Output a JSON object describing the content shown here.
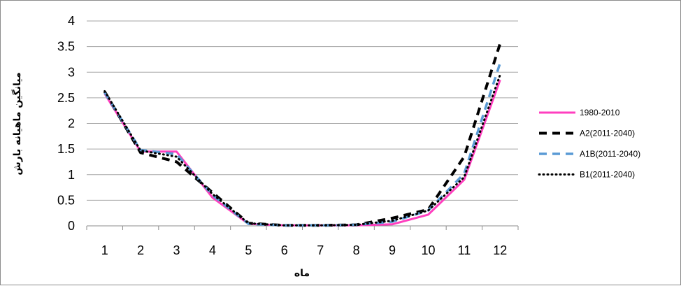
{
  "chart_data": {
    "type": "line",
    "title": "",
    "xlabel": "ماه",
    "ylabel": "میانگین ماهیانه بارش",
    "categories": [
      "1",
      "2",
      "3",
      "4",
      "5",
      "6",
      "7",
      "8",
      "9",
      "10",
      "11",
      "12"
    ],
    "ylim": [
      0,
      4
    ],
    "yticks": [
      "0",
      "0.5",
      "1",
      "1.5",
      "2",
      "2.5",
      "3",
      "3.5",
      "4"
    ],
    "grid": true,
    "legend_position": "right",
    "series": [
      {
        "name": "1980-2010",
        "color": "#ff3fbf",
        "style": "solid",
        "values": [
          2.58,
          1.45,
          1.45,
          0.55,
          0.04,
          0.01,
          0.01,
          0.01,
          0.03,
          0.22,
          0.9,
          2.85
        ]
      },
      {
        "name": "A2(2011-2040)",
        "color": "#000000",
        "style": "dash",
        "values": [
          2.62,
          1.43,
          1.25,
          0.65,
          0.05,
          0.01,
          0.01,
          0.02,
          0.15,
          0.32,
          1.35,
          3.56
        ]
      },
      {
        "name": "A1B(2011-2040)",
        "color": "#5b9bd5",
        "style": "dash",
        "values": [
          2.6,
          1.48,
          1.4,
          0.6,
          0.04,
          0.01,
          0.01,
          0.02,
          0.08,
          0.3,
          1.02,
          3.18
        ]
      },
      {
        "name": "B1(2011-2040)",
        "color": "#000000",
        "style": "dot",
        "values": [
          2.63,
          1.47,
          1.35,
          0.62,
          0.05,
          0.01,
          0.01,
          0.02,
          0.1,
          0.3,
          0.95,
          2.95
        ]
      }
    ]
  }
}
